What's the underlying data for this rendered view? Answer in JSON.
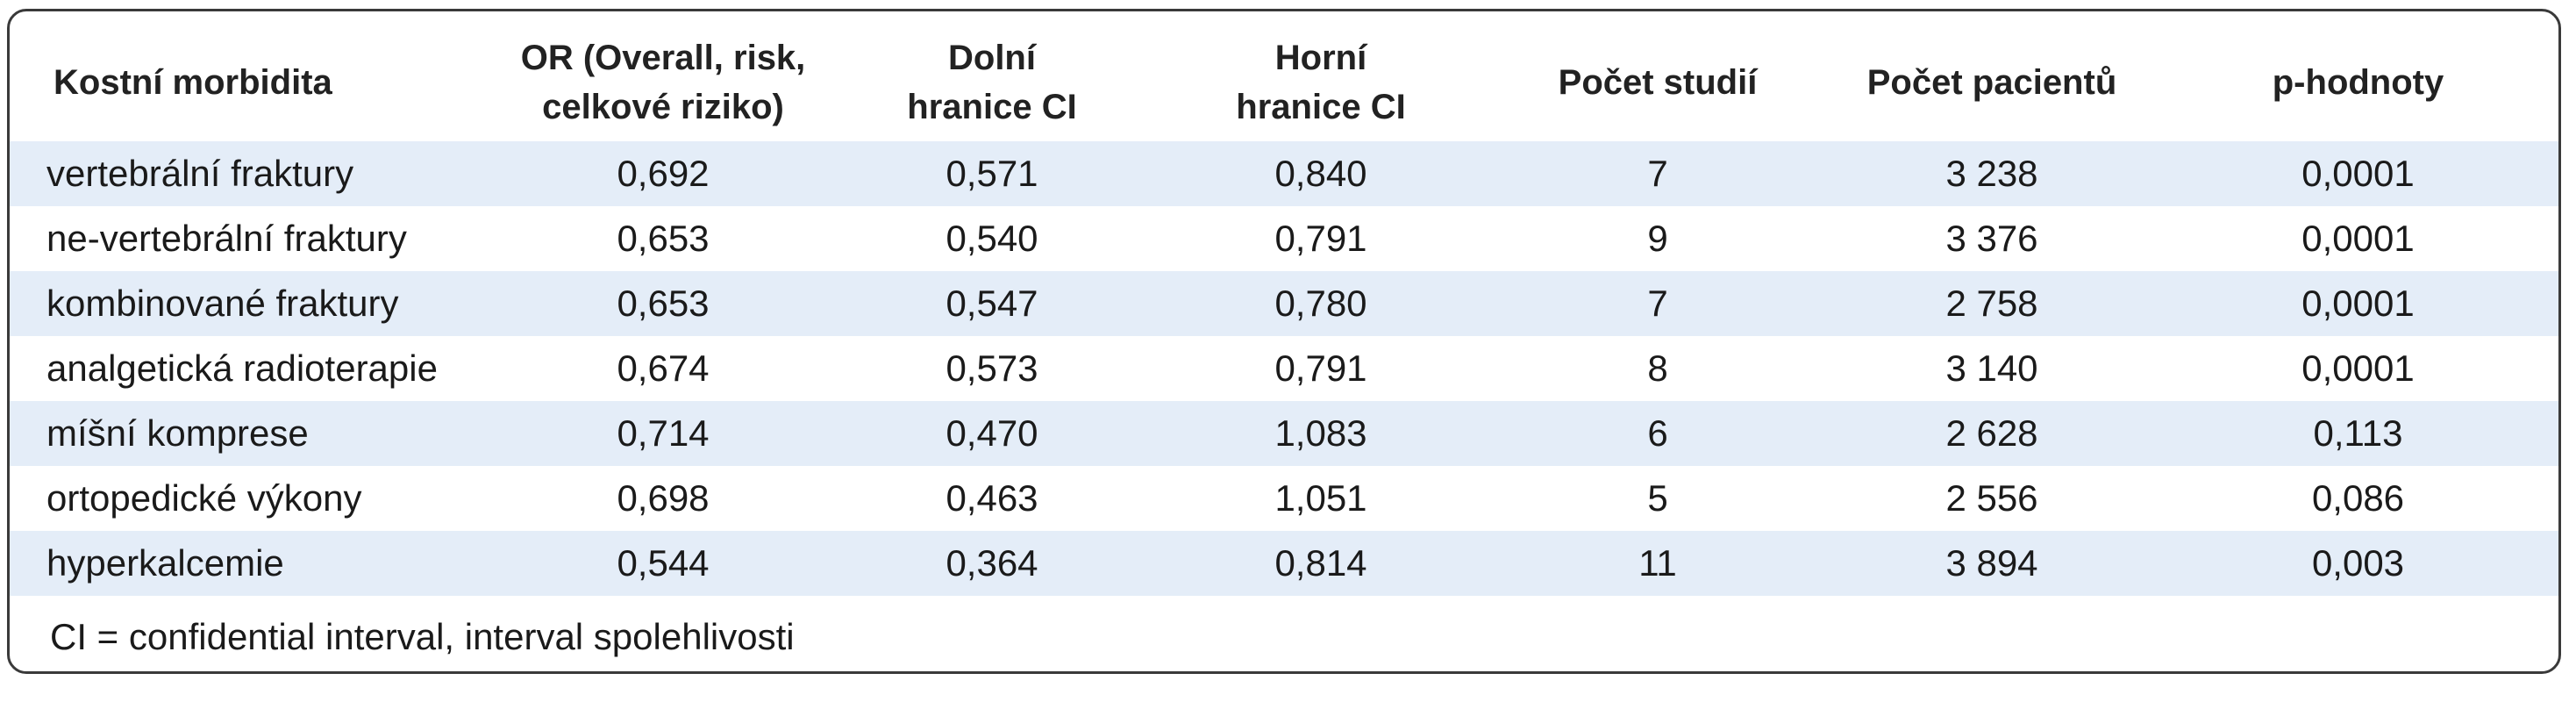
{
  "table": {
    "headers": [
      "Kostní morbidita",
      "OR (Overall, risk, celkové riziko)",
      "Dolní hranice CI",
      "Horní hranice CI",
      "Počet studií",
      "Počet pacientů",
      "p-hodnoty"
    ],
    "header_lines": [
      [
        "Kostní morbidita"
      ],
      [
        "OR (Overall, risk,",
        "celkové riziko)"
      ],
      [
        "Dolní",
        "hranice CI"
      ],
      [
        "Horní",
        "hranice CI"
      ],
      [
        "Počet studií"
      ],
      [
        "Počet pacientů"
      ],
      [
        "p-hodnoty"
      ]
    ],
    "rows": [
      [
        "vertebrální fraktury",
        "0,692",
        "0,571",
        "0,840",
        "7",
        "3 238",
        "0,0001"
      ],
      [
        "ne-vertebrální fraktury",
        "0,653",
        "0,540",
        "0,791",
        "9",
        "3 376",
        "0,0001"
      ],
      [
        "kombinované fraktury",
        "0,653",
        "0,547",
        "0,780",
        "7",
        "2 758",
        "0,0001"
      ],
      [
        "analgetická radioterapie",
        "0,674",
        "0,573",
        "0,791",
        "8",
        "3 140",
        "0,0001"
      ],
      [
        "míšní komprese",
        "0,714",
        "0,470",
        "1,083",
        "6",
        "2 628",
        "0,113"
      ],
      [
        "ortopedické výkony",
        "0,698",
        "0,463",
        "1,051",
        "5",
        "2 556",
        "0,086"
      ],
      [
        "hyperkalcemie",
        "0,544",
        "0,364",
        "0,814",
        "11",
        "3 894",
        "0,003"
      ]
    ],
    "footnote": "CI = confidential interval, interval spolehlivosti",
    "colors": {
      "shaded_row": "#e4edf8",
      "border": "#3a3a3a",
      "text": "#1a1a1a"
    }
  }
}
